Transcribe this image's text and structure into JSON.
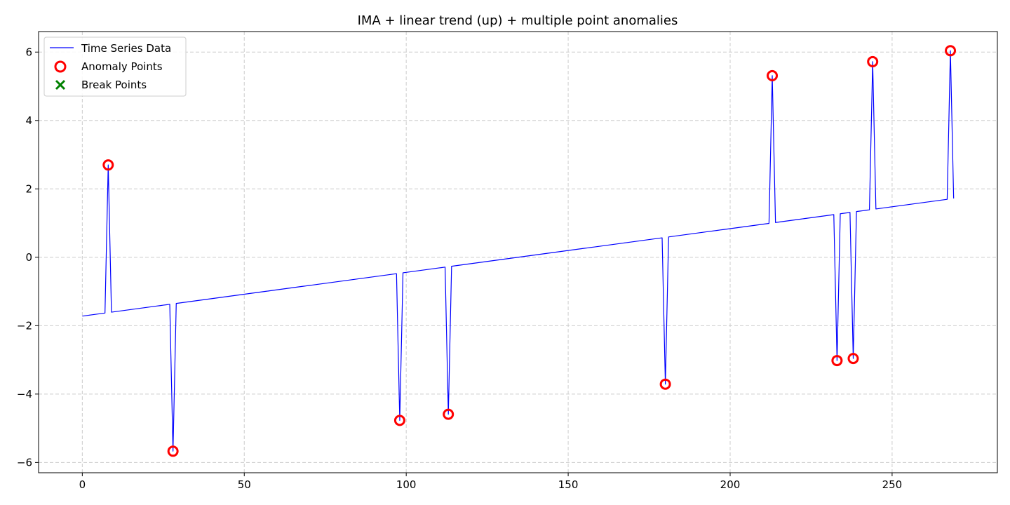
{
  "chart_data": {
    "type": "line",
    "title": "IMA + linear trend (up) + multiple point anomalies",
    "xlabel": "",
    "ylabel": "",
    "xlim": [
      -13.5,
      282.5
    ],
    "ylim": [
      -6.3,
      6.6
    ],
    "xticks": [
      0,
      50,
      100,
      150,
      200,
      250
    ],
    "yticks": [
      -6,
      -4,
      -2,
      0,
      2,
      4,
      6
    ],
    "xtick_labels": [
      "0",
      "50",
      "100",
      "150",
      "200",
      "250"
    ],
    "ytick_labels": [
      "−6",
      "−4",
      "−2",
      "0",
      "2",
      "4",
      "6"
    ],
    "grid": true,
    "legend_position": "top-left",
    "series": [
      {
        "name": "Time Series Data",
        "kind": "line",
        "color": "#0000ff",
        "trend": {
          "x_start": 0,
          "x_end": 269,
          "y_start": -1.72,
          "y_end": 1.72
        }
      },
      {
        "name": "Anomaly Points",
        "kind": "scatter",
        "marker": "open-circle",
        "color": "#ff0000",
        "points": [
          {
            "x": 8,
            "y": 2.7
          },
          {
            "x": 28,
            "y": -5.67
          },
          {
            "x": 98,
            "y": -4.77
          },
          {
            "x": 113,
            "y": -4.59
          },
          {
            "x": 180,
            "y": -3.71
          },
          {
            "x": 213,
            "y": 5.31
          },
          {
            "x": 233,
            "y": -3.02
          },
          {
            "x": 238,
            "y": -2.96
          },
          {
            "x": 244,
            "y": 5.72
          },
          {
            "x": 268,
            "y": 6.04
          }
        ]
      },
      {
        "name": "Break Points",
        "kind": "scatter",
        "marker": "x",
        "color": "#008000",
        "points": []
      }
    ]
  }
}
